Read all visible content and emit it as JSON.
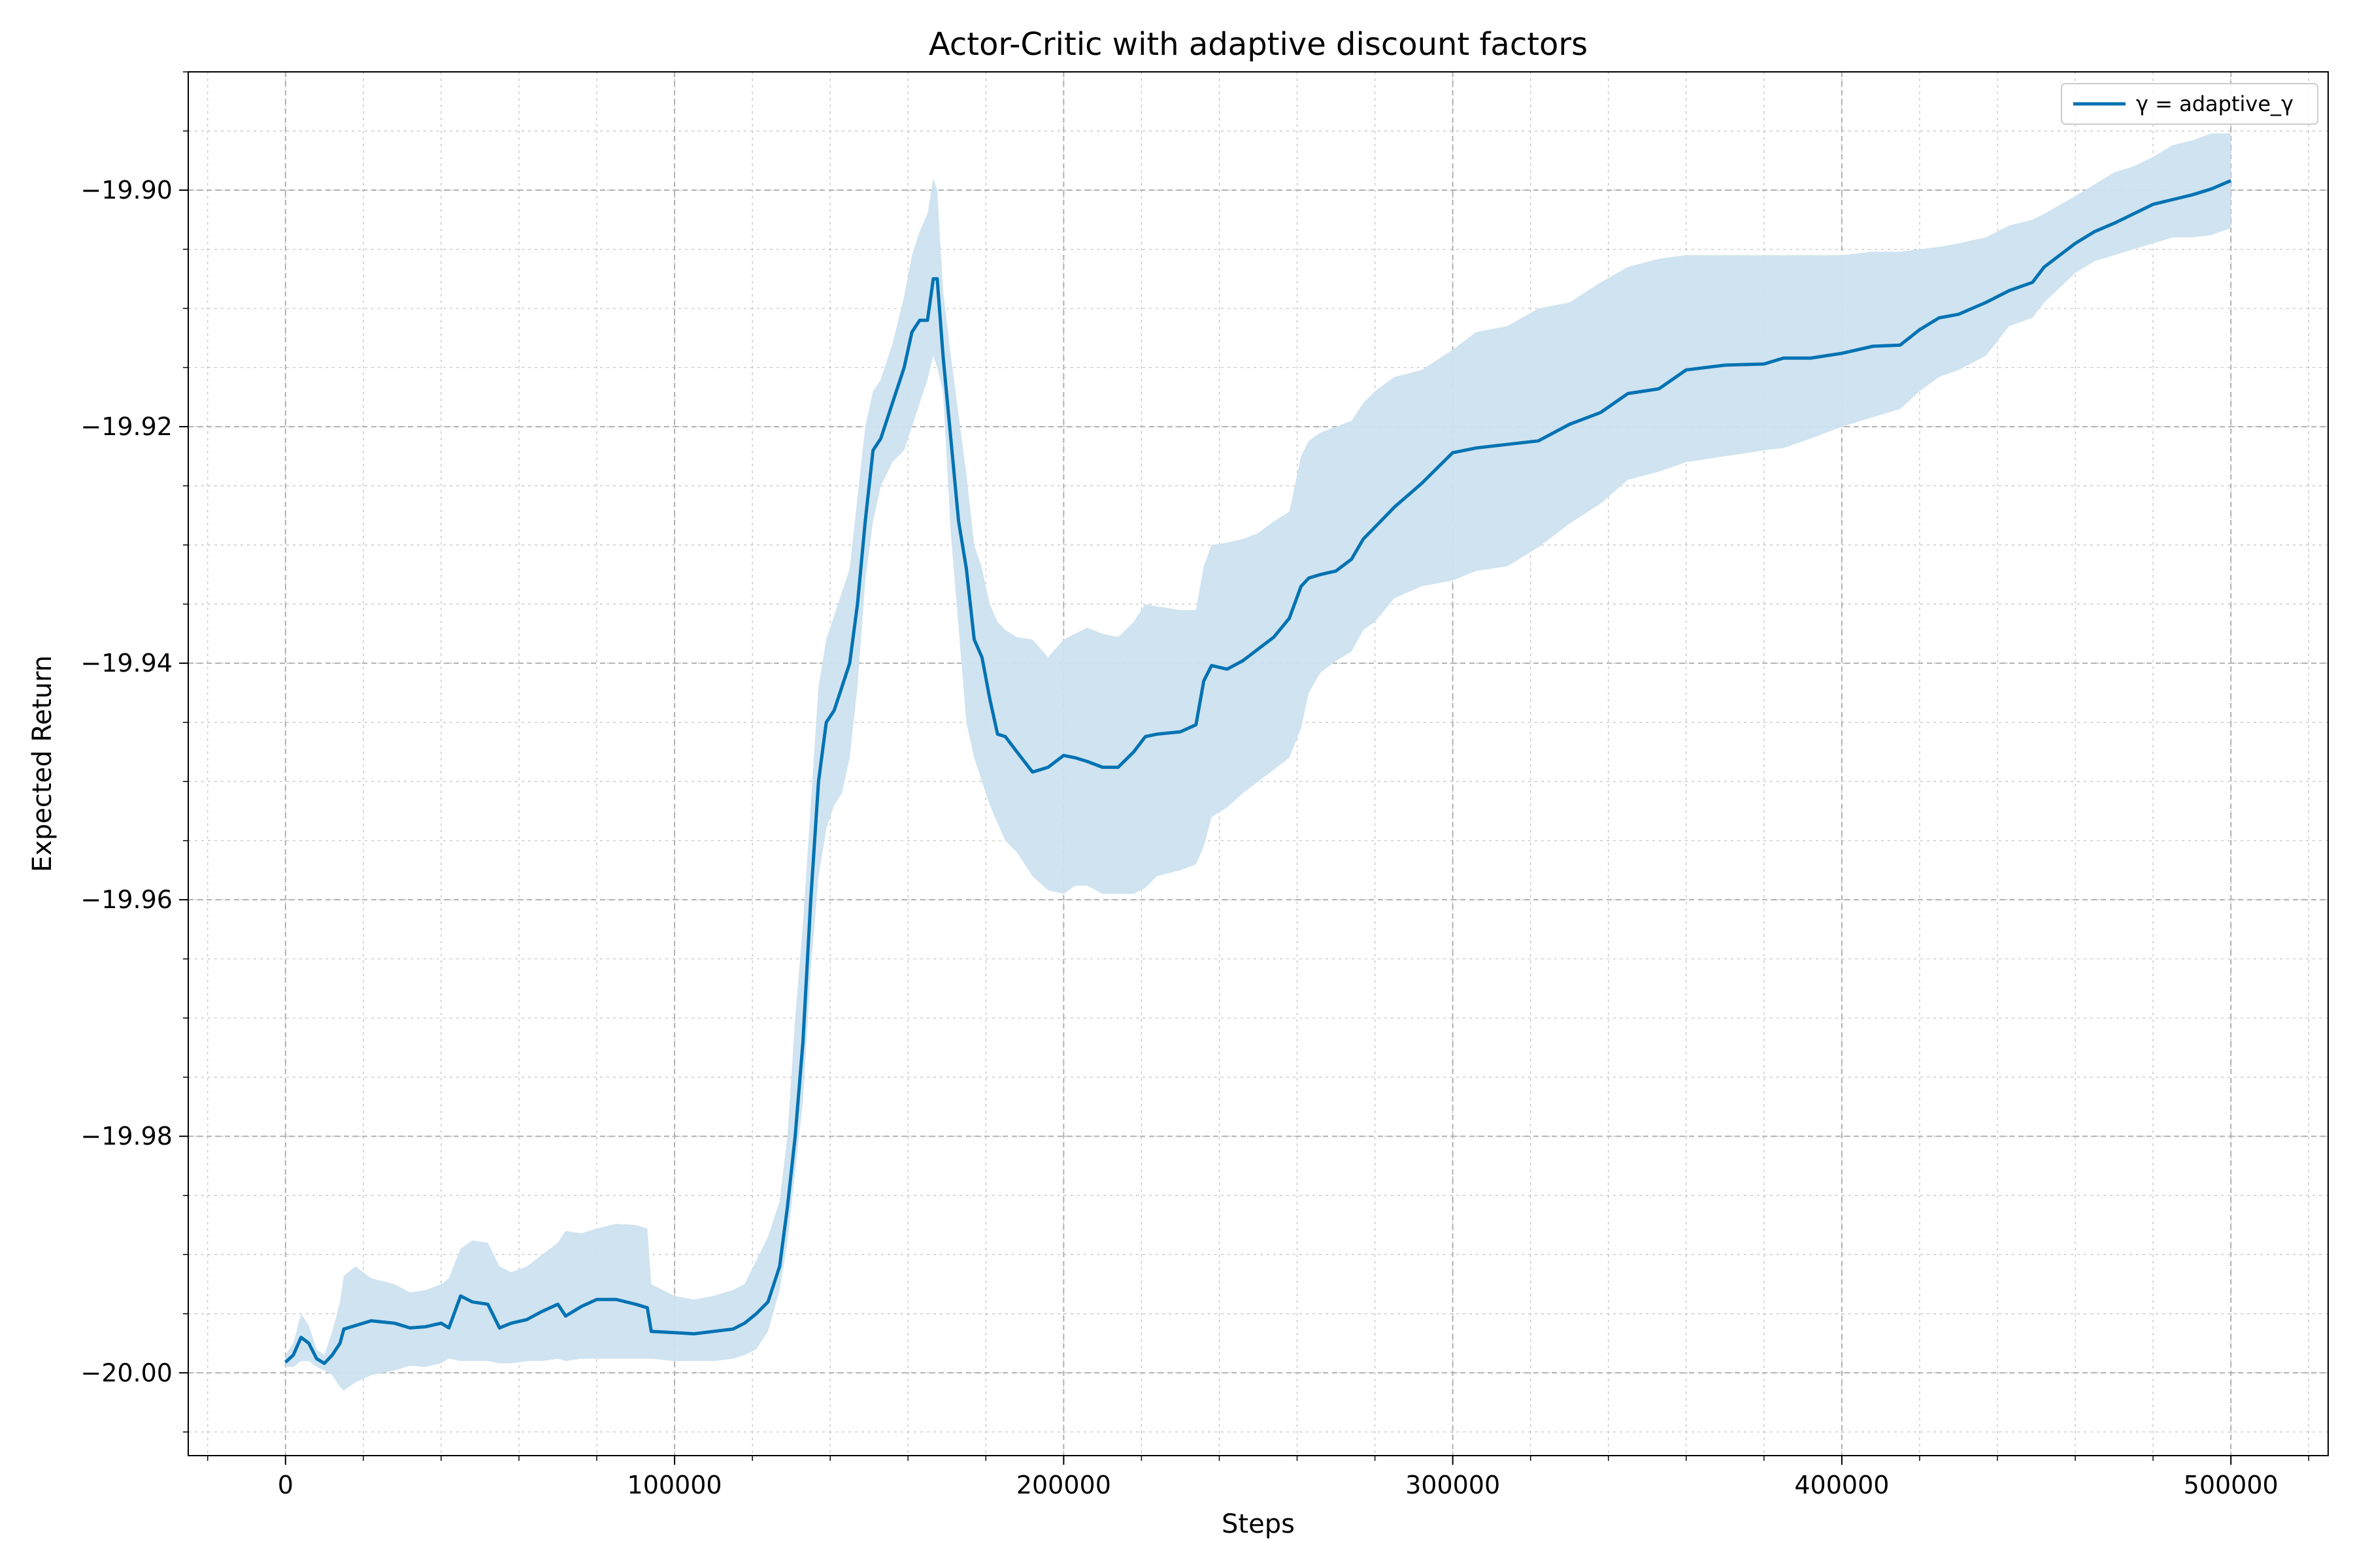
{
  "chart_data": {
    "type": "line",
    "title": "Actor-Critic with adaptive discount factors",
    "xlabel": "Steps",
    "ylabel": "Expected Return",
    "xlim": [
      -25000,
      525000
    ],
    "ylim": [
      -20.007,
      -19.89
    ],
    "xticks": [
      0,
      100000,
      200000,
      300000,
      400000,
      500000
    ],
    "xtick_labels": [
      "0",
      "100000",
      "200000",
      "300000",
      "400000",
      "500000"
    ],
    "yticks": [
      -20.0,
      -19.98,
      -19.96,
      -19.94,
      -19.92,
      -19.9
    ],
    "ytick_labels": [
      "−20.00",
      "−19.98",
      "−19.96",
      "−19.94",
      "−19.92",
      "−19.90"
    ],
    "x_minor_step": 20000,
    "y_minor_step": 0.005,
    "grid": true,
    "minor_grid": true,
    "legend_position": "top-right",
    "colors": {
      "line": "#0072b2",
      "band": "#cce1ef",
      "grid": "#b0b0b0"
    },
    "series": [
      {
        "name": "γ = adaptive_γ",
        "x": [
          0,
          2000,
          4000,
          6000,
          8000,
          10000,
          12000,
          14000,
          15000,
          18000,
          22000,
          28000,
          32000,
          36000,
          40000,
          42000,
          45000,
          48000,
          52000,
          55000,
          58000,
          62000,
          66000,
          70000,
          72000,
          76000,
          80000,
          85000,
          90000,
          93000,
          94000,
          100000,
          105000,
          110000,
          115000,
          118000,
          121000,
          124000,
          127000,
          129000,
          131000,
          133000,
          135000,
          137000,
          139000,
          141000,
          143000,
          145000,
          147000,
          149000,
          151000,
          153000,
          156000,
          159000,
          161000,
          163000,
          165000,
          166500,
          167500,
          169000,
          171000,
          173000,
          175000,
          177000,
          179000,
          181000,
          183000,
          185000,
          188000,
          192000,
          196000,
          200000,
          203000,
          206000,
          210000,
          214000,
          218000,
          221000,
          224000,
          230000,
          234000,
          236000,
          238000,
          242000,
          246000,
          250000,
          254000,
          258000,
          261000,
          263000,
          266000,
          270000,
          274000,
          277000,
          280000,
          285000,
          292000,
          300000,
          306000,
          314000,
          322000,
          330000,
          338000,
          345000,
          353000,
          360000,
          370000,
          380000,
          385000,
          392000,
          400000,
          408000,
          415000,
          420000,
          425000,
          430000,
          437000,
          443000,
          449000,
          452000,
          460000,
          465000,
          470000,
          475000,
          480000,
          485000,
          490000,
          495000,
          500000
        ],
        "y": [
          -19.9991,
          -19.9985,
          -19.997,
          -19.9975,
          -19.9988,
          -19.9992,
          -19.9985,
          -19.9975,
          -19.9963,
          -19.996,
          -19.9956,
          -19.9958,
          -19.9962,
          -19.9961,
          -19.9958,
          -19.9962,
          -19.9935,
          -19.994,
          -19.9942,
          -19.9962,
          -19.9958,
          -19.9955,
          -19.9948,
          -19.9942,
          -19.9952,
          -19.9944,
          -19.9938,
          -19.9938,
          -19.9942,
          -19.9945,
          -19.9965,
          -19.9966,
          -19.9967,
          -19.9965,
          -19.9963,
          -19.9958,
          -19.995,
          -19.994,
          -19.991,
          -19.986,
          -19.98,
          -19.972,
          -19.96,
          -19.95,
          -19.945,
          -19.944,
          -19.942,
          -19.94,
          -19.935,
          -19.928,
          -19.922,
          -19.921,
          -19.918,
          -19.915,
          -19.912,
          -19.911,
          -19.911,
          -19.9075,
          -19.9075,
          -19.914,
          -19.921,
          -19.928,
          -19.932,
          -19.938,
          -19.9395,
          -19.943,
          -19.946,
          -19.9462,
          -19.9475,
          -19.9492,
          -19.9488,
          -19.9478,
          -19.948,
          -19.9483,
          -19.9488,
          -19.9488,
          -19.9475,
          -19.9462,
          -19.946,
          -19.9458,
          -19.9452,
          -19.9415,
          -19.9402,
          -19.9405,
          -19.9398,
          -19.9388,
          -19.9378,
          -19.9362,
          -19.9335,
          -19.9328,
          -19.9325,
          -19.9322,
          -19.9312,
          -19.9295,
          -19.9285,
          -19.9268,
          -19.9248,
          -19.9222,
          -19.9218,
          -19.9215,
          -19.9212,
          -19.9198,
          -19.9188,
          -19.9172,
          -19.9168,
          -19.9152,
          -19.9148,
          -19.9147,
          -19.9142,
          -19.9142,
          -19.9138,
          -19.9132,
          -19.9131,
          -19.9118,
          -19.9108,
          -19.9105,
          -19.9095,
          -19.9085,
          -19.9078,
          -19.9065,
          -19.9045,
          -19.9035,
          -19.9028,
          -19.902,
          -19.9012,
          -19.9008,
          -19.9004,
          -19.8999,
          -19.8992
        ],
        "lower": [
          -19.9995,
          -19.9995,
          -19.999,
          -19.999,
          -19.9995,
          -19.9998,
          -20.0002,
          -20.0012,
          -20.0015,
          -20.0008,
          -20.0002,
          -19.9998,
          -19.9994,
          -19.9995,
          -19.9992,
          -19.9988,
          -19.999,
          -19.999,
          -19.999,
          -19.9992,
          -19.9992,
          -19.999,
          -19.999,
          -19.9988,
          -19.999,
          -19.9988,
          -19.9988,
          -19.9988,
          -19.9988,
          -19.9988,
          -19.9988,
          -19.999,
          -19.999,
          -19.999,
          -19.9988,
          -19.9985,
          -19.998,
          -19.9965,
          -19.993,
          -19.989,
          -19.983,
          -19.977,
          -19.966,
          -19.958,
          -19.954,
          -19.952,
          -19.951,
          -19.948,
          -19.942,
          -19.933,
          -19.928,
          -19.925,
          -19.923,
          -19.922,
          -19.92,
          -19.918,
          -19.916,
          -19.914,
          -19.915,
          -19.917,
          -19.929,
          -19.937,
          -19.945,
          -19.948,
          -19.95,
          -19.952,
          -19.9535,
          -19.955,
          -19.956,
          -19.958,
          -19.9592,
          -19.9595,
          -19.9588,
          -19.9588,
          -19.9595,
          -19.9595,
          -19.9595,
          -19.959,
          -19.958,
          -19.9575,
          -19.957,
          -19.9555,
          -19.953,
          -19.9522,
          -19.951,
          -19.95,
          -19.949,
          -19.948,
          -19.9455,
          -19.9425,
          -19.9408,
          -19.9398,
          -19.939,
          -19.9372,
          -19.9365,
          -19.9345,
          -19.9335,
          -19.933,
          -19.9322,
          -19.9318,
          -19.9302,
          -19.9282,
          -19.9265,
          -19.9245,
          -19.9238,
          -19.923,
          -19.9225,
          -19.922,
          -19.9218,
          -19.921,
          -19.92,
          -19.9192,
          -19.9185,
          -19.917,
          -19.9158,
          -19.9152,
          -19.914,
          -19.9115,
          -19.9108,
          -19.9095,
          -19.907,
          -19.906,
          -19.9055,
          -19.905,
          -19.9045,
          -19.904,
          -19.904,
          -19.9038,
          -19.9032
        ],
        "upper": [
          -19.9985,
          -19.9975,
          -19.995,
          -19.996,
          -19.998,
          -19.9985,
          -19.9965,
          -19.994,
          -19.9918,
          -19.991,
          -19.992,
          -19.9925,
          -19.9932,
          -19.993,
          -19.9925,
          -19.992,
          -19.9895,
          -19.9888,
          -19.989,
          -19.991,
          -19.9915,
          -19.991,
          -19.99,
          -19.989,
          -19.988,
          -19.9882,
          -19.9878,
          -19.9874,
          -19.9875,
          -19.9878,
          -19.9925,
          -19.9935,
          -19.9938,
          -19.9935,
          -19.993,
          -19.9925,
          -19.9905,
          -19.9885,
          -19.9855,
          -19.98,
          -19.97,
          -19.962,
          -19.952,
          -19.942,
          -19.938,
          -19.936,
          -19.934,
          -19.932,
          -19.926,
          -19.92,
          -19.917,
          -19.916,
          -19.913,
          -19.909,
          -19.9055,
          -19.9035,
          -19.902,
          -19.899,
          -19.9,
          -19.9085,
          -19.914,
          -19.919,
          -19.924,
          -19.93,
          -19.932,
          -19.935,
          -19.9365,
          -19.9372,
          -19.9378,
          -19.938,
          -19.9395,
          -19.938,
          -19.9375,
          -19.937,
          -19.9375,
          -19.9378,
          -19.9365,
          -19.935,
          -19.9352,
          -19.9355,
          -19.9355,
          -19.9318,
          -19.93,
          -19.9298,
          -19.9295,
          -19.929,
          -19.928,
          -19.9272,
          -19.9225,
          -19.9212,
          -19.9205,
          -19.92,
          -19.9195,
          -19.918,
          -19.917,
          -19.9158,
          -19.9152,
          -19.9135,
          -19.912,
          -19.9115,
          -19.91,
          -19.9095,
          -19.9078,
          -19.9065,
          -19.9058,
          -19.9055,
          -19.9055,
          -19.9055,
          -19.9055,
          -19.9055,
          -19.9055,
          -19.9052,
          -19.9052,
          -19.905,
          -19.9048,
          -19.9045,
          -19.904,
          -19.903,
          -19.9025,
          -19.902,
          -19.9005,
          -19.8995,
          -19.8985,
          -19.898,
          -19.8972,
          -19.8962,
          -19.8958,
          -19.8952,
          -19.8952
        ]
      }
    ]
  }
}
